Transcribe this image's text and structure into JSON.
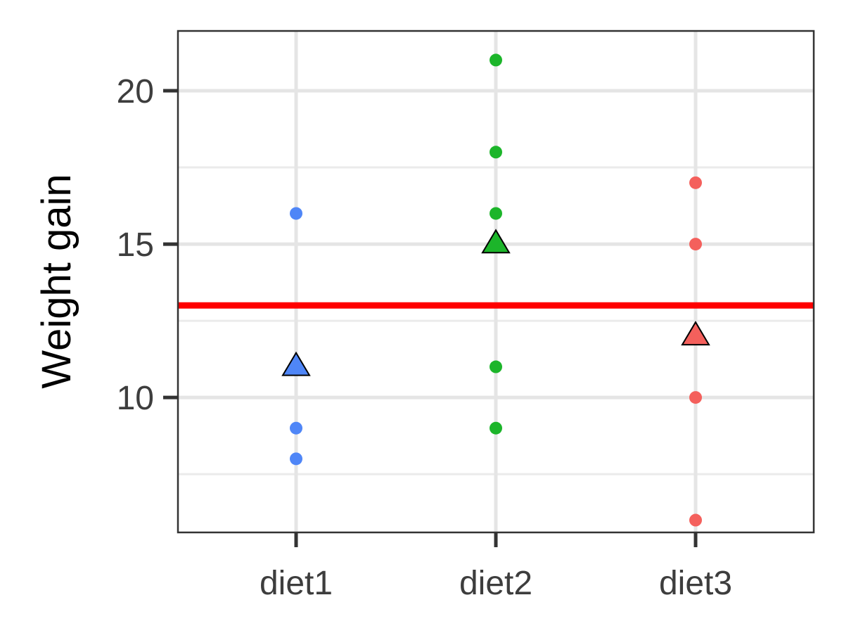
{
  "chart_data": {
    "type": "scatter",
    "ylabel": "Weight gain",
    "xlabel": "",
    "categories": [
      "diet1",
      "diet2",
      "diet3"
    ],
    "ylim": [
      5.6,
      21.95
    ],
    "y_ticks": [
      10,
      15,
      20
    ],
    "y_minor_ticks": [
      7.5,
      12.5,
      17.5
    ],
    "grid": true,
    "series": [
      {
        "category": "diet1",
        "color": "#4f86f7",
        "points": [
          16,
          9,
          8
        ],
        "mean": 11
      },
      {
        "category": "diet2",
        "color": "#1cb52a",
        "points": [
          21,
          18,
          16,
          11,
          9
        ],
        "mean": 15
      },
      {
        "category": "diet3",
        "color": "#f4605c",
        "points": [
          17,
          15,
          10,
          6
        ],
        "mean": 12
      }
    ],
    "reference_line": {
      "y": 13,
      "color": "#ff0000"
    }
  }
}
